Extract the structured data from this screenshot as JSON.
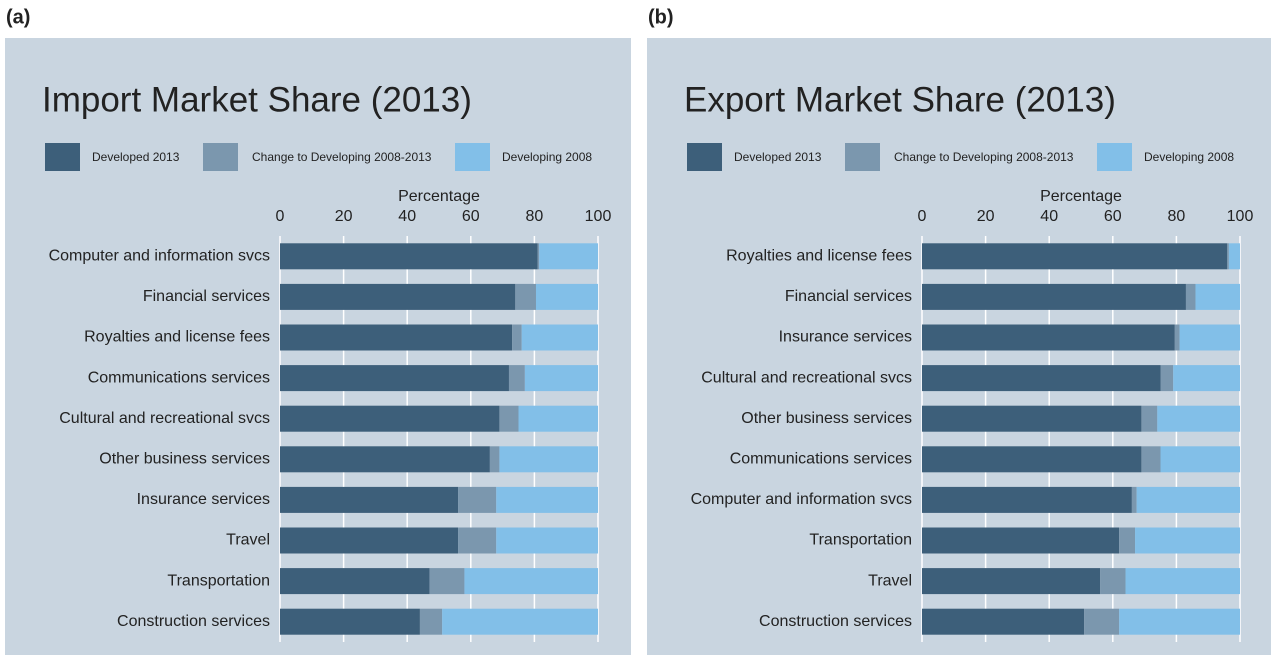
{
  "chart_data": [
    {
      "type": "stacked_barh",
      "label": "(a)",
      "title": "Import Market Share (2013)",
      "xlabel": "Percentage",
      "categories": [
        "Computer and information svcs",
        "Financial services",
        "Royalties and license fees",
        "Communications services",
        "Cultural and recreational svcs",
        "Other business services",
        "Insurance services",
        "Travel",
        "Transportation",
        "Construction services"
      ],
      "series": [
        {
          "name": "Developed 2013",
          "color": "#3d5f7a",
          "values": [
            81,
            74,
            73,
            72,
            69,
            66,
            56,
            56,
            47,
            44
          ]
        },
        {
          "name": "Change to Developing 2008-2013",
          "color": "#7b97ae",
          "values": [
            0.5,
            6.5,
            3,
            5,
            6,
            3,
            12,
            12,
            11,
            7
          ]
        },
        {
          "name": "Developing 2008",
          "color": "#82bfe8",
          "values": [
            18.5,
            19.5,
            24,
            23,
            25,
            31,
            32,
            32,
            42,
            49
          ]
        }
      ],
      "xlim": [
        0,
        100
      ],
      "xticks": [
        0,
        20,
        40,
        60,
        80,
        100
      ],
      "grid": true
    },
    {
      "type": "stacked_barh",
      "label": "(b)",
      "title": "Export Market Share (2013)",
      "xlabel": "Percentage",
      "categories": [
        "Royalties and license fees",
        "Financial services",
        "Insurance services",
        "Cultural and recreational svcs",
        "Other business services",
        "Communications services",
        "Computer and information svcs",
        "Transportation",
        "Travel",
        "Construction services"
      ],
      "series": [
        {
          "name": "Developed 2013",
          "color": "#3d5f7a",
          "values": [
            96,
            83,
            79.5,
            75,
            69,
            69,
            66,
            62,
            56,
            51
          ]
        },
        {
          "name": "Change to Developing 2008-2013",
          "color": "#7b97ae",
          "values": [
            0.5,
            3,
            1.5,
            4,
            5,
            6,
            1.5,
            5,
            8,
            11
          ]
        },
        {
          "name": "Developing 2008",
          "color": "#82bfe8",
          "values": [
            3.5,
            14,
            19,
            21,
            26,
            25,
            32.5,
            33,
            36,
            38
          ]
        }
      ],
      "xlim": [
        0,
        100
      ],
      "xticks": [
        0,
        20,
        40,
        60,
        80,
        100
      ],
      "grid": true
    }
  ]
}
